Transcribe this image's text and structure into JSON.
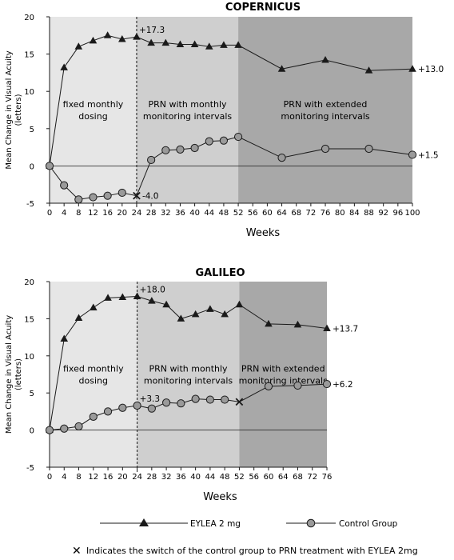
{
  "chart_data": [
    {
      "type": "line",
      "title": "COPERNICUS",
      "xlabel": "Weeks",
      "ylabel": "Mean Change in Visual Acuity (letters)",
      "ylabel_lines": [
        "Mean Change in Visual Acuity",
        "(letters)"
      ],
      "xlim": [
        0,
        100
      ],
      "ylim": [
        -5,
        20
      ],
      "xticks": [
        0,
        4,
        8,
        12,
        16,
        20,
        24,
        28,
        32,
        36,
        40,
        44,
        48,
        52,
        56,
        60,
        64,
        68,
        72,
        76,
        80,
        84,
        88,
        92,
        96,
        100
      ],
      "yticks": [
        -5,
        0,
        5,
        10,
        15,
        20
      ],
      "switch_week": 24,
      "phases": [
        {
          "lines": [
            "fixed monthly",
            "dosing"
          ],
          "x_start": 0,
          "x_end": 24,
          "color": "#e6e6e6"
        },
        {
          "lines": [
            "PRN with monthly",
            "monitoring intervals"
          ],
          "x_start": 24,
          "x_end": 52,
          "color": "#cfcfcf"
        },
        {
          "lines": [
            "PRN with extended",
            "monitoring intervals"
          ],
          "x_start": 52,
          "x_end": 100,
          "color": "#a8a8a8"
        }
      ],
      "series": [
        {
          "name": "EYLEA 2 mg",
          "marker": "triangle",
          "x": [
            0,
            4,
            8,
            12,
            16,
            20,
            24,
            28,
            32,
            36,
            40,
            44,
            48,
            52,
            64,
            76,
            88,
            100
          ],
          "y": [
            0,
            13.2,
            16.0,
            16.8,
            17.5,
            17.0,
            17.3,
            16.5,
            16.5,
            16.3,
            16.3,
            16.0,
            16.2,
            16.2,
            13.0,
            14.2,
            12.8,
            13.0
          ]
        },
        {
          "name": "Control Group",
          "marker": "circle",
          "x": [
            0,
            4,
            8,
            12,
            16,
            20,
            24,
            28,
            32,
            36,
            40,
            44,
            48,
            52,
            64,
            76,
            88,
            100
          ],
          "y": [
            0,
            -2.6,
            -4.5,
            -4.2,
            -4.0,
            -3.6,
            -4.0,
            0.8,
            2.1,
            2.2,
            2.4,
            3.3,
            3.4,
            3.9,
            1.1,
            2.3,
            2.3,
            1.5
          ],
          "switch_index": 6
        }
      ],
      "annotations": [
        {
          "text": "+17.3",
          "x": 24,
          "y": 17.3,
          "pos": "above-right"
        },
        {
          "text": "-4.0",
          "x": 24,
          "y": -4.0,
          "pos": "right"
        },
        {
          "text": "+13.0",
          "x": 100,
          "y": 13.0,
          "pos": "right"
        },
        {
          "text": "+1.5",
          "x": 100,
          "y": 1.5,
          "pos": "right"
        }
      ]
    },
    {
      "type": "line",
      "title": "GALILEO",
      "xlabel": "Weeks",
      "ylabel": "Mean Change in Visual Acuity (letters)",
      "ylabel_lines": [
        "Mean Change in Visual Acuity",
        "(letters)"
      ],
      "xlim": [
        0,
        76
      ],
      "ylim": [
        -5,
        20
      ],
      "xticks": [
        0,
        4,
        8,
        12,
        16,
        20,
        24,
        28,
        32,
        36,
        40,
        44,
        48,
        52,
        56,
        60,
        64,
        68,
        72,
        76
      ],
      "yticks": [
        -5,
        0,
        5,
        10,
        15,
        20
      ],
      "switch_week": 24,
      "phases": [
        {
          "lines": [
            "fixed monthly",
            "dosing"
          ],
          "x_start": 0,
          "x_end": 24,
          "color": "#e6e6e6"
        },
        {
          "lines": [
            "PRN with monthly",
            "monitoring intervals"
          ],
          "x_start": 24,
          "x_end": 52,
          "color": "#cfcfcf"
        },
        {
          "lines": [
            "PRN with extended",
            "monitoring intervals"
          ],
          "x_start": 52,
          "x_end": 76,
          "color": "#a8a8a8"
        }
      ],
      "series": [
        {
          "name": "EYLEA 2 mg",
          "marker": "triangle",
          "x": [
            0,
            4,
            8,
            12,
            16,
            20,
            24,
            28,
            32,
            36,
            40,
            44,
            48,
            52,
            60,
            68,
            76
          ],
          "y": [
            0,
            12.3,
            15.1,
            16.5,
            17.8,
            17.9,
            18.0,
            17.4,
            16.9,
            15.0,
            15.6,
            16.3,
            15.6,
            16.9,
            14.3,
            14.2,
            13.7
          ]
        },
        {
          "name": "Control Group",
          "marker": "circle",
          "x": [
            0,
            4,
            8,
            12,
            16,
            20,
            24,
            28,
            32,
            36,
            40,
            44,
            48,
            52,
            60,
            68,
            76
          ],
          "y": [
            0,
            0.2,
            0.5,
            1.8,
            2.5,
            3.0,
            3.3,
            2.9,
            3.7,
            3.6,
            4.2,
            4.1,
            4.1,
            3.8,
            5.9,
            6.0,
            6.2
          ],
          "switch_index": 13
        }
      ],
      "annotations": [
        {
          "text": "+18.0",
          "x": 24,
          "y": 18.0,
          "pos": "above-right"
        },
        {
          "text": "+3.3",
          "x": 24,
          "y": 3.3,
          "pos": "above-right"
        },
        {
          "text": "+13.7",
          "x": 76,
          "y": 13.7,
          "pos": "right"
        },
        {
          "text": "+6.2",
          "x": 76,
          "y": 6.2,
          "pos": "right"
        }
      ]
    }
  ],
  "legend": {
    "eylea_label": "EYLEA 2 mg",
    "control_label": "Control Group",
    "switch_note": "Indicates the switch of the control group to PRN treatment with EYLEA 2mg",
    "switch_marker": "✕"
  },
  "colors": {
    "line": "#1a1a1a",
    "circle_fill": "#9a9a9a"
  }
}
